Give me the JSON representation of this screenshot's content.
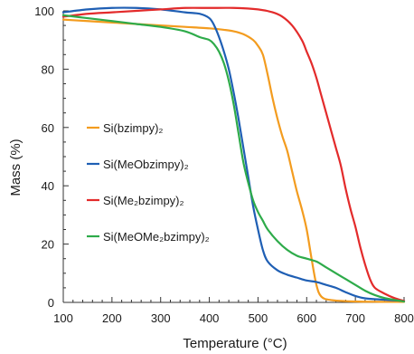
{
  "chart_data": {
    "type": "line",
    "title": "",
    "xlabel": "Temperature (°C)",
    "ylabel": "Mass  (%)",
    "xlim": [
      100,
      800
    ],
    "ylim": [
      0,
      100
    ],
    "x_ticks": [
      100,
      200,
      300,
      400,
      500,
      600,
      700,
      800
    ],
    "y_ticks": [
      0,
      20,
      40,
      60,
      80,
      100
    ],
    "grid": false,
    "legend_position": "left",
    "series": [
      {
        "name": "Si(bzimpy)₂",
        "color": "#f39c1f",
        "points": [
          [
            100,
            97
          ],
          [
            150,
            96.5
          ],
          [
            200,
            96
          ],
          [
            250,
            95.5
          ],
          [
            300,
            95
          ],
          [
            350,
            94.5
          ],
          [
            400,
            94
          ],
          [
            430,
            93.5
          ],
          [
            450,
            93
          ],
          [
            470,
            92
          ],
          [
            490,
            90
          ],
          [
            500,
            88
          ],
          [
            510,
            85
          ],
          [
            520,
            78
          ],
          [
            530,
            70
          ],
          [
            540,
            63
          ],
          [
            550,
            57
          ],
          [
            560,
            52
          ],
          [
            570,
            45
          ],
          [
            580,
            38
          ],
          [
            590,
            32
          ],
          [
            600,
            25
          ],
          [
            610,
            15
          ],
          [
            620,
            6
          ],
          [
            630,
            2
          ],
          [
            650,
            0.8
          ],
          [
            700,
            0.3
          ],
          [
            750,
            0.2
          ],
          [
            800,
            0.2
          ]
        ]
      },
      {
        "name": "Si(MeObzimpy)₂",
        "color": "#1f5fb4",
        "points": [
          [
            100,
            99.5
          ],
          [
            150,
            100.5
          ],
          [
            200,
            101
          ],
          [
            250,
            101
          ],
          [
            300,
            100.5
          ],
          [
            350,
            99.5
          ],
          [
            380,
            99
          ],
          [
            400,
            97.5
          ],
          [
            410,
            95
          ],
          [
            420,
            91
          ],
          [
            430,
            86
          ],
          [
            440,
            80
          ],
          [
            450,
            72
          ],
          [
            460,
            63
          ],
          [
            470,
            53
          ],
          [
            480,
            43
          ],
          [
            490,
            33
          ],
          [
            500,
            25
          ],
          [
            510,
            18
          ],
          [
            520,
            14
          ],
          [
            540,
            11
          ],
          [
            560,
            9.5
          ],
          [
            580,
            8.5
          ],
          [
            600,
            7.5
          ],
          [
            620,
            7
          ],
          [
            640,
            6
          ],
          [
            660,
            5
          ],
          [
            680,
            3.5
          ],
          [
            700,
            2.2
          ],
          [
            720,
            1.4
          ],
          [
            750,
            1
          ],
          [
            800,
            0.5
          ]
        ]
      },
      {
        "name": "Si(Me₂bzimpy)₂",
        "color": "#e32b2b",
        "points": [
          [
            100,
            98
          ],
          [
            150,
            99
          ],
          [
            200,
            99.5
          ],
          [
            250,
            100
          ],
          [
            300,
            100.5
          ],
          [
            350,
            101
          ],
          [
            400,
            101
          ],
          [
            450,
            101
          ],
          [
            500,
            100.5
          ],
          [
            530,
            99.5
          ],
          [
            550,
            98
          ],
          [
            570,
            95
          ],
          [
            590,
            90
          ],
          [
            600,
            86
          ],
          [
            610,
            82
          ],
          [
            620,
            77
          ],
          [
            630,
            71
          ],
          [
            640,
            65
          ],
          [
            650,
            59
          ],
          [
            660,
            53
          ],
          [
            670,
            47
          ],
          [
            680,
            39
          ],
          [
            690,
            32
          ],
          [
            700,
            26
          ],
          [
            710,
            19
          ],
          [
            720,
            13
          ],
          [
            730,
            8
          ],
          [
            740,
            5
          ],
          [
            760,
            3
          ],
          [
            780,
            1.5
          ],
          [
            800,
            0.5
          ]
        ]
      },
      {
        "name": "Si(MeOMe₂bzimpy)₂",
        "color": "#2eab4a",
        "points": [
          [
            100,
            98.5
          ],
          [
            150,
            97.5
          ],
          [
            200,
            96.5
          ],
          [
            250,
            95.5
          ],
          [
            300,
            94.5
          ],
          [
            350,
            93
          ],
          [
            380,
            91
          ],
          [
            400,
            90
          ],
          [
            410,
            88.5
          ],
          [
            420,
            86
          ],
          [
            430,
            82
          ],
          [
            440,
            76
          ],
          [
            450,
            68
          ],
          [
            460,
            58
          ],
          [
            470,
            48
          ],
          [
            480,
            41
          ],
          [
            490,
            35
          ],
          [
            500,
            31
          ],
          [
            510,
            28
          ],
          [
            520,
            25
          ],
          [
            540,
            21
          ],
          [
            560,
            18
          ],
          [
            580,
            16
          ],
          [
            600,
            15
          ],
          [
            620,
            14
          ],
          [
            640,
            12
          ],
          [
            660,
            10
          ],
          [
            680,
            8
          ],
          [
            700,
            6
          ],
          [
            720,
            4
          ],
          [
            740,
            2.5
          ],
          [
            760,
            1.5
          ],
          [
            800,
            0.3
          ]
        ]
      }
    ]
  }
}
